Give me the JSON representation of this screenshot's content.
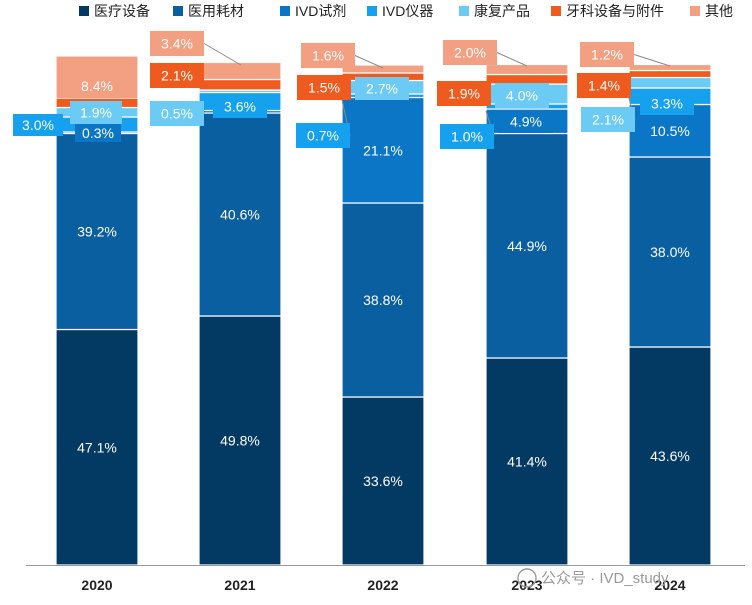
{
  "chart_data": {
    "type": "bar",
    "stacked": true,
    "normalized": true,
    "title": "",
    "xlabel": "",
    "ylabel": "",
    "ylim": [
      0,
      100
    ],
    "grid": false,
    "legend_position": "top",
    "categories": [
      "2020",
      "2021",
      "2022",
      "2023",
      "2024"
    ],
    "series": [
      {
        "name": "医疗设备",
        "color": "#033a63",
        "values": [
          47.1,
          49.8,
          33.6,
          41.4,
          43.6
        ]
      },
      {
        "name": "医用耗材",
        "color": "#0a5fa0",
        "values": [
          39.2,
          40.6,
          38.8,
          44.9,
          38.0
        ]
      },
      {
        "name": "IVD试剂",
        "color": "#0b76c6",
        "values": [
          0.3,
          0.5,
          21.1,
          4.9,
          10.5
        ]
      },
      {
        "name": "IVD仪器",
        "color": "#16a1ef",
        "values": [
          3.0,
          3.6,
          0.7,
          1.0,
          3.3
        ]
      },
      {
        "name": "康复产品",
        "color": "#6ccbf5",
        "values": [
          1.9,
          0.5,
          2.7,
          4.0,
          2.1
        ]
      },
      {
        "name": "牙科设备与附件",
        "color": "#ef5a1f",
        "values": [
          1.9,
          2.1,
          1.5,
          1.9,
          1.4
        ]
      },
      {
        "name": "其他",
        "color": "#f39f82",
        "values": [
          8.4,
          3.4,
          1.6,
          2.0,
          1.2
        ]
      }
    ],
    "labels": [
      [
        "47.1%",
        "39.2%",
        "0.3%",
        "3.0%",
        "1.9%",
        "",
        "8.4%"
      ],
      [
        "49.8%",
        "40.6%",
        "",
        "3.6%",
        "0.5%",
        "2.1%",
        "3.4%"
      ],
      [
        "33.6%",
        "38.8%",
        "21.1%",
        "0.7%",
        "2.7%",
        "1.5%",
        "1.6%"
      ],
      [
        "41.4%",
        "44.9%",
        "4.9%",
        "1.0%",
        "4.0%",
        "1.9%",
        "2.0%"
      ],
      [
        "43.6%",
        "38.0%",
        "10.5%",
        "3.3%",
        "2.1%",
        "1.4%",
        "1.2%"
      ]
    ]
  },
  "watermark": "公众号 · IVD_study"
}
